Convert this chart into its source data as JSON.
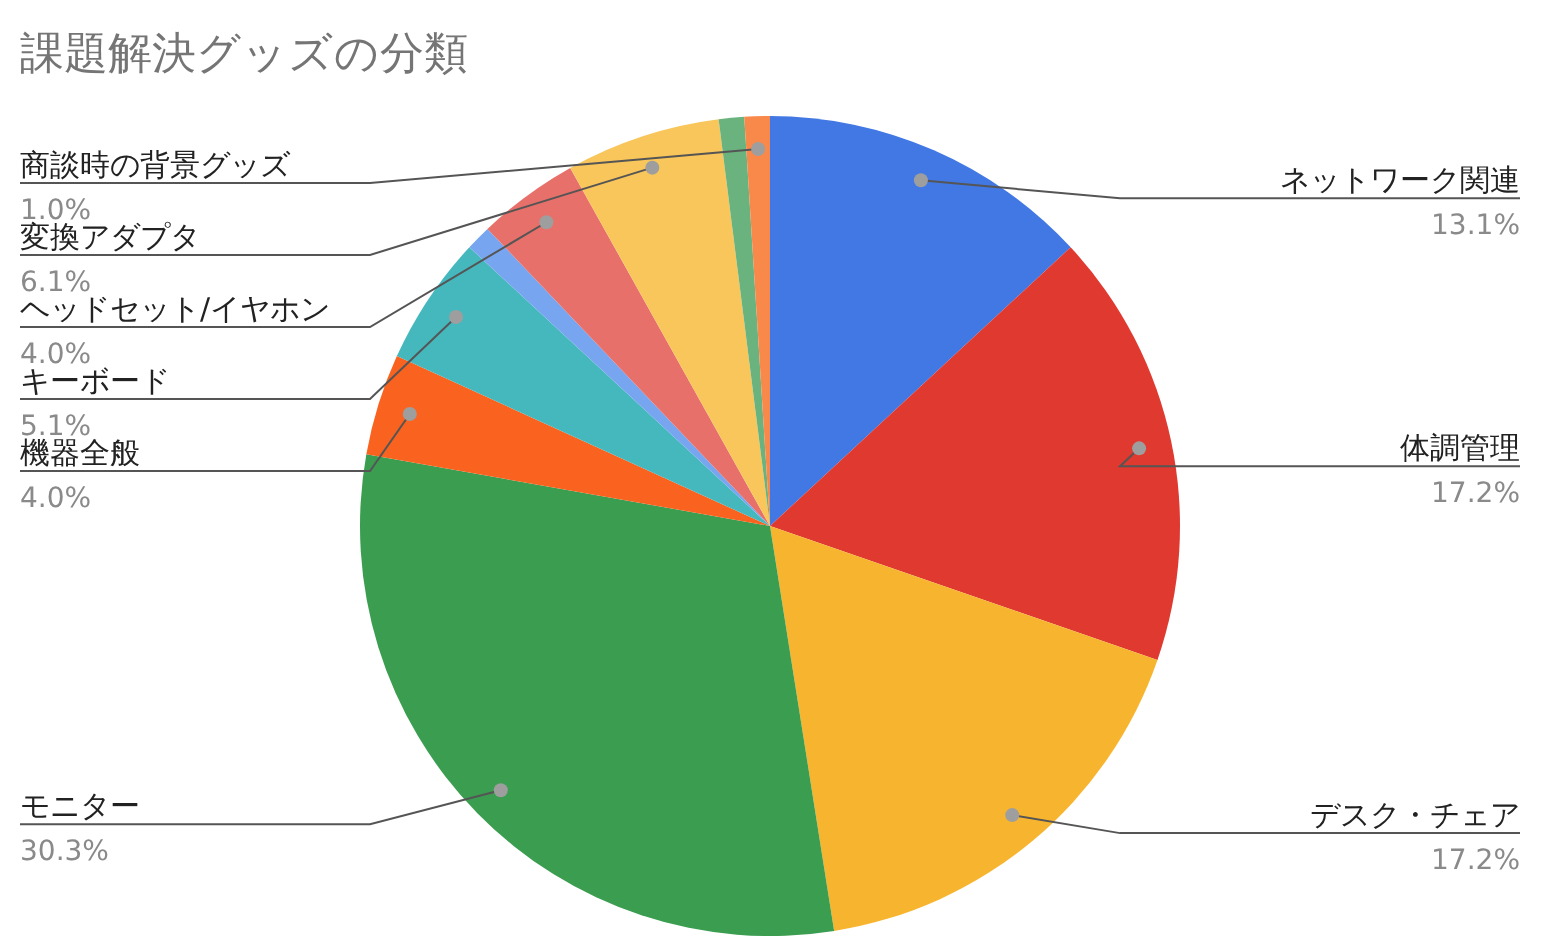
{
  "chart_data": {
    "type": "pie",
    "title": "課題解決グッズの分類",
    "categories": [
      "ネットワーク関連",
      "体調管理",
      "デスク・チェア",
      "モニター",
      "機器全般",
      "キーボード",
      null,
      "ヘッドセット/イヤホン",
      "変換アダプタ",
      null,
      "商談時の背景グッズ"
    ],
    "values": [
      13.1,
      17.2,
      17.2,
      30.3,
      4.0,
      5.1,
      1.0,
      4.0,
      6.1,
      1.0,
      1.0
    ],
    "value_labels": [
      "13.1%",
      "17.2%",
      "17.2%",
      "30.3%",
      "4.0%",
      "5.1%",
      null,
      "4.0%",
      "6.1%",
      null,
      "1.0%"
    ],
    "colors": [
      "#4178e3",
      "#e0392f",
      "#f7b52f",
      "#3a9d50",
      "#f9621f",
      "#45b8be",
      "#78a5f0",
      "#e8706a",
      "#f8c65a",
      "#6ab37f",
      "#f9894b"
    ]
  }
}
